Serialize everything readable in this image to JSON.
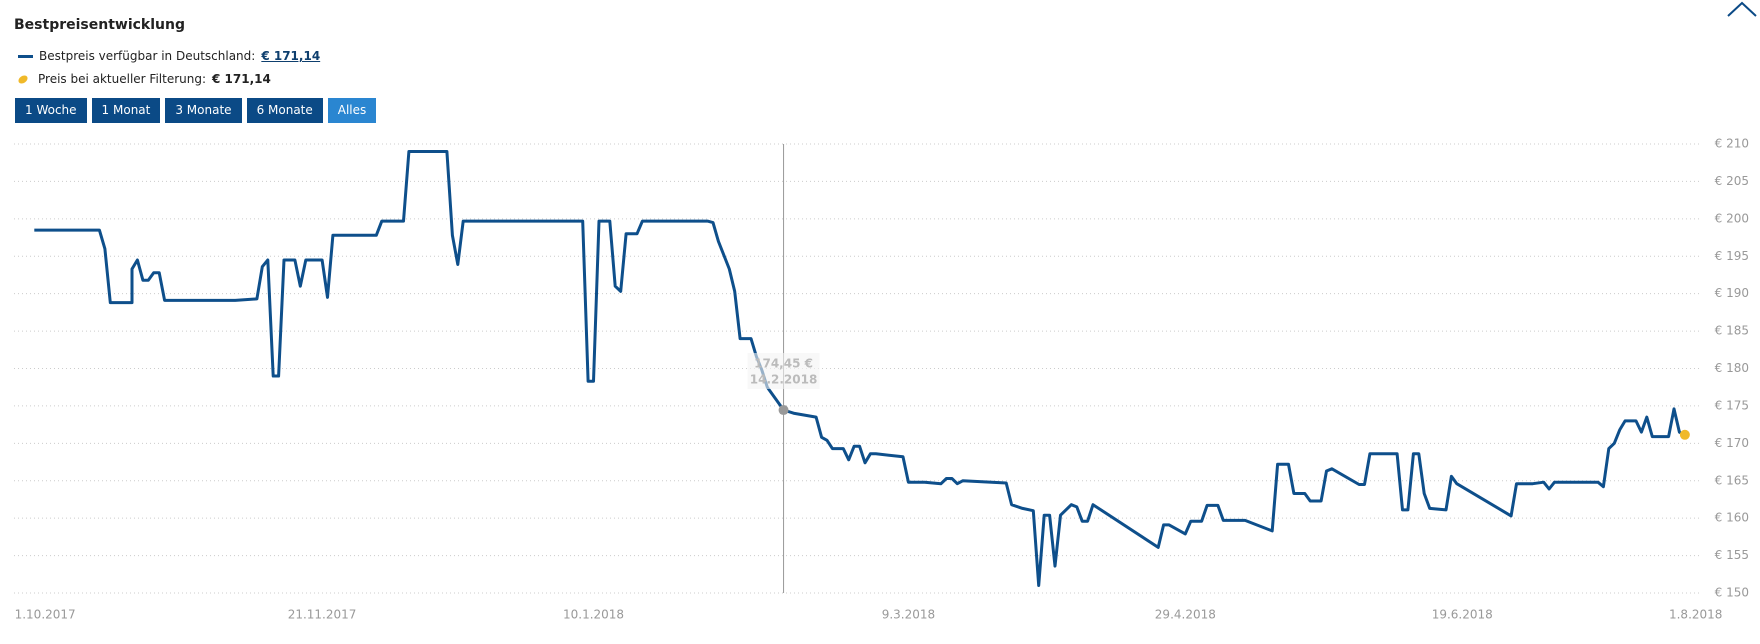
{
  "header": {
    "title": "Bestpreisentwicklung"
  },
  "range_buttons": [
    "1 Woche",
    "1 Monat",
    "3 Monate",
    "6 Monate",
    "Alles"
  ],
  "active_button": 4,
  "chart_data": {
    "type": "line",
    "series": [
      {
        "name": "Bestpreis verfügbar in Deutschland:",
        "legend_value": "€ 171,14",
        "color": "#0e4f8b",
        "x": [
          "2017-09-29",
          "2017-10-11",
          "2017-10-12",
          "2017-10-13",
          "2017-10-17",
          "2017-10-17",
          "2017-10-18",
          "2017-10-19",
          "2017-10-20",
          "2017-10-21",
          "2017-10-22",
          "2017-10-23",
          "2017-11-05",
          "2017-11-09",
          "2017-11-10",
          "2017-11-11",
          "2017-11-12",
          "2017-11-13",
          "2017-11-14",
          "2017-11-16",
          "2017-11-17",
          "2017-11-18",
          "2017-11-21",
          "2017-11-22",
          "2017-11-23",
          "2017-12-01",
          "2017-12-02",
          "2017-12-06",
          "2017-12-07",
          "2017-12-14",
          "2017-12-15",
          "2017-12-16",
          "2017-12-17",
          "2018-01-08",
          "2018-01-09",
          "2018-01-10",
          "2018-01-11",
          "2018-01-13",
          "2018-01-14",
          "2018-01-15",
          "2018-01-16",
          "2018-01-18",
          "2018-01-19",
          "2018-01-31",
          "2018-02-01",
          "2018-02-02",
          "2018-02-04",
          "2018-02-05",
          "2018-02-06",
          "2018-02-08",
          "2018-02-09",
          "2018-02-10",
          "2018-02-11",
          "2018-02-14",
          "2018-02-16",
          "2018-02-20",
          "2018-02-21",
          "2018-02-22",
          "2018-02-23",
          "2018-02-25",
          "2018-02-26",
          "2018-02-27",
          "2018-02-28",
          "2018-03-01",
          "2018-03-02",
          "2018-03-03",
          "2018-03-08",
          "2018-03-09",
          "2018-03-12",
          "2018-03-15",
          "2018-03-16",
          "2018-03-17",
          "2018-03-18",
          "2018-03-19",
          "2018-03-27",
          "2018-03-28",
          "2018-03-30",
          "2018-04-01",
          "2018-04-02",
          "2018-04-03",
          "2018-04-04",
          "2018-04-05",
          "2018-04-06",
          "2018-04-08",
          "2018-04-09",
          "2018-04-10",
          "2018-04-11",
          "2018-04-12",
          "2018-04-24",
          "2018-04-25",
          "2018-04-26",
          "2018-04-29",
          "2018-04-30",
          "2018-05-02",
          "2018-05-03",
          "2018-05-05",
          "2018-05-06",
          "2018-05-10",
          "2018-05-15",
          "2018-05-16",
          "2018-05-18",
          "2018-05-19",
          "2018-05-21",
          "2018-05-22",
          "2018-05-24",
          "2018-05-25",
          "2018-05-26",
          "2018-05-31",
          "2018-06-01",
          "2018-06-02",
          "2018-06-07",
          "2018-06-08",
          "2018-06-09",
          "2018-06-10",
          "2018-06-11",
          "2018-06-12",
          "2018-06-13",
          "2018-06-16",
          "2018-06-17",
          "2018-06-18",
          "2018-06-28",
          "2018-06-29",
          "2018-07-02",
          "2018-07-04",
          "2018-07-05",
          "2018-07-06",
          "2018-07-14",
          "2018-07-15",
          "2018-07-16",
          "2018-07-17",
          "2018-07-18",
          "2018-07-19",
          "2018-07-21",
          "2018-07-22",
          "2018-07-23",
          "2018-07-24",
          "2018-07-27",
          "2018-07-28",
          "2018-07-29",
          "2018-07-30"
        ],
        "values": [
          198.5,
          198.5,
          196,
          188.8,
          188.8,
          193.3,
          194.5,
          191.8,
          191.8,
          192.8,
          192.8,
          189.1,
          189.1,
          189.3,
          193.6,
          194.5,
          179,
          179,
          194.5,
          194.5,
          191,
          194.5,
          194.5,
          189.5,
          197.8,
          197.8,
          199.7,
          199.7,
          209,
          209,
          197.8,
          193.9,
          199.7,
          199.7,
          178.3,
          178.3,
          199.7,
          199.7,
          191,
          190.3,
          198,
          198,
          199.7,
          199.7,
          199.5,
          197,
          193.3,
          190.3,
          184,
          184,
          181.6,
          179.8,
          177.5,
          174.45,
          174,
          173.5,
          170.8,
          170.4,
          169.3,
          169.3,
          167.8,
          169.6,
          169.6,
          167.4,
          168.6,
          168.6,
          168.2,
          164.8,
          164.8,
          164.6,
          165.3,
          165.3,
          164.6,
          165,
          164.7,
          161.8,
          161.3,
          161,
          151,
          160.4,
          160.4,
          153.6,
          160.4,
          161.8,
          161.5,
          159.6,
          159.6,
          161.8,
          156.1,
          159.1,
          159.1,
          157.9,
          159.6,
          159.6,
          161.7,
          161.7,
          159.7,
          159.7,
          158.3,
          167.2,
          167.2,
          163.3,
          163.3,
          162.3,
          162.3,
          166.3,
          166.6,
          164.5,
          164.5,
          168.6,
          168.6,
          161.1,
          161.1,
          168.6,
          168.6,
          163.3,
          161.3,
          161.1,
          165.6,
          164.6,
          160.3,
          164.6,
          164.6,
          164.8,
          163.9,
          164.8,
          164.8,
          164.2,
          169.3,
          170,
          171.8,
          173,
          173,
          171.5,
          173.5,
          170.9,
          170.9,
          174.6,
          171.5,
          171.14
        ]
      },
      {
        "name": "Preis bei aktueller Filterung:",
        "legend_value": "€ 171,14",
        "color": "#f0b929",
        "x": [
          "2018-07-30"
        ],
        "values": [
          171.14
        ]
      }
    ],
    "tooltip": {
      "x": "2018-02-14",
      "value": 174.45,
      "label": "174,45 €",
      "date_label": "14.2.2018"
    },
    "xlim": [
      "2017-09-26",
      "2018-08-04"
    ],
    "xticks": [
      {
        "value": "2017-10-01",
        "label": "1.10.2017"
      },
      {
        "value": "2017-11-21",
        "label": "21.11.2017"
      },
      {
        "value": "2018-01-10",
        "label": "10.1.2018"
      },
      {
        "value": "2018-03-09",
        "label": "9.3.2018"
      },
      {
        "value": "2018-04-29",
        "label": "29.4.2018"
      },
      {
        "value": "2018-06-19",
        "label": "19.6.2018"
      },
      {
        "value": "2018-08-01",
        "label": "1.8.2018"
      }
    ],
    "ylim": [
      150,
      210
    ],
    "yticks": [
      {
        "value": 150,
        "label": "€ 150"
      },
      {
        "value": 155,
        "label": "€ 155"
      },
      {
        "value": 160,
        "label": "€ 160"
      },
      {
        "value": 165,
        "label": "€ 165"
      },
      {
        "value": 170,
        "label": "€ 170"
      },
      {
        "value": 175,
        "label": "€ 175"
      },
      {
        "value": 180,
        "label": "€ 180"
      },
      {
        "value": 185,
        "label": "€ 185"
      },
      {
        "value": 190,
        "label": "€ 190"
      },
      {
        "value": 195,
        "label": "€ 195"
      },
      {
        "value": 200,
        "label": "€ 200"
      },
      {
        "value": 205,
        "label": "€ 205"
      },
      {
        "value": 210,
        "label": "€ 210"
      }
    ],
    "grid": true
  }
}
